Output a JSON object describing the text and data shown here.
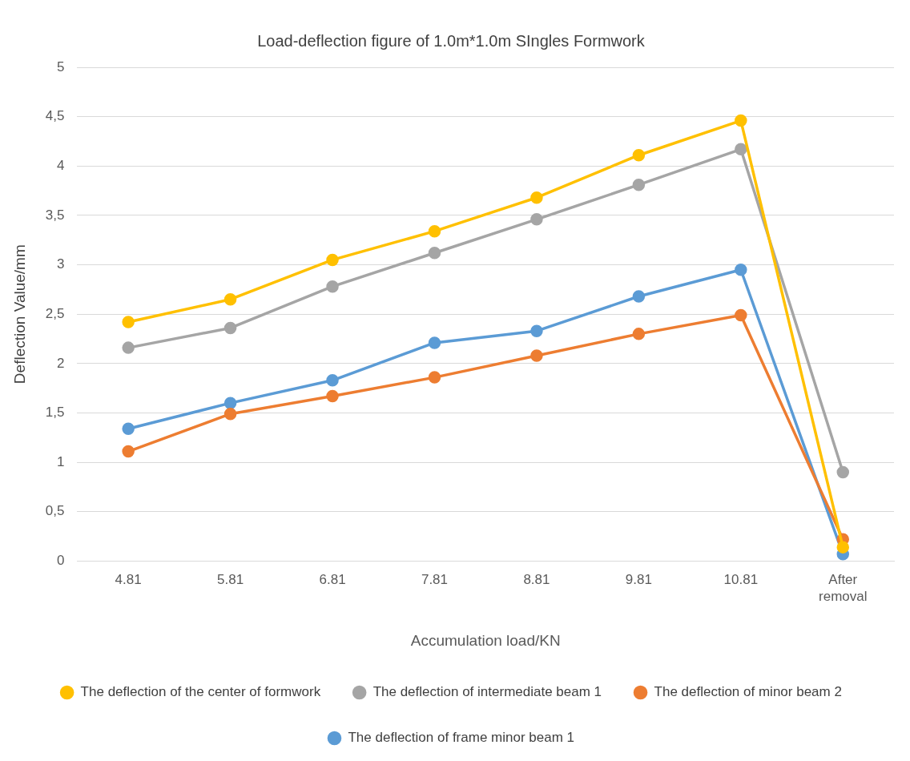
{
  "chart_data": {
    "type": "line",
    "title": "Load-deflection figure of 1.0m*1.0m SIngles Formwork",
    "xlabel": "Accumulation load/KN",
    "ylabel": "Deflection Value/mm",
    "categories": [
      "4.81",
      "5.81",
      "6.81",
      "7.81",
      "8.81",
      "9.81",
      "10.81",
      "After removal"
    ],
    "series": [
      {
        "name": "The deflection of frame minor beam 1",
        "color": "#5b9bd5",
        "values": [
          1.34,
          1.6,
          1.83,
          2.21,
          2.33,
          2.68,
          2.95,
          0.07
        ]
      },
      {
        "name": "The deflection of minor beam 2",
        "color": "#ed7d31",
        "values": [
          1.11,
          1.49,
          1.67,
          1.86,
          2.08,
          2.3,
          2.49,
          0.22
        ]
      },
      {
        "name": "The deflection of intermediate beam 1",
        "color": "#a5a5a5",
        "values": [
          2.16,
          2.36,
          2.78,
          3.12,
          3.46,
          3.81,
          4.17,
          0.9
        ]
      },
      {
        "name": "The deflection of the center of formwork",
        "color": "#ffc000",
        "values": [
          2.42,
          2.65,
          3.05,
          3.34,
          3.68,
          4.11,
          4.46,
          0.14
        ]
      }
    ],
    "ylim": [
      0,
      5
    ],
    "yticks": [
      0,
      {
        "value": 0.5,
        "label": "0,5"
      },
      1,
      {
        "value": 1.5,
        "label": "1,5"
      },
      2,
      {
        "value": 2.5,
        "label": "2,5"
      },
      3,
      {
        "value": 3.5,
        "label": "3,5"
      },
      4,
      {
        "value": 4.5,
        "label": "4,5"
      },
      5
    ],
    "grid": "y",
    "legend": "bottom",
    "marker": "circle",
    "line_style": "solid"
  }
}
